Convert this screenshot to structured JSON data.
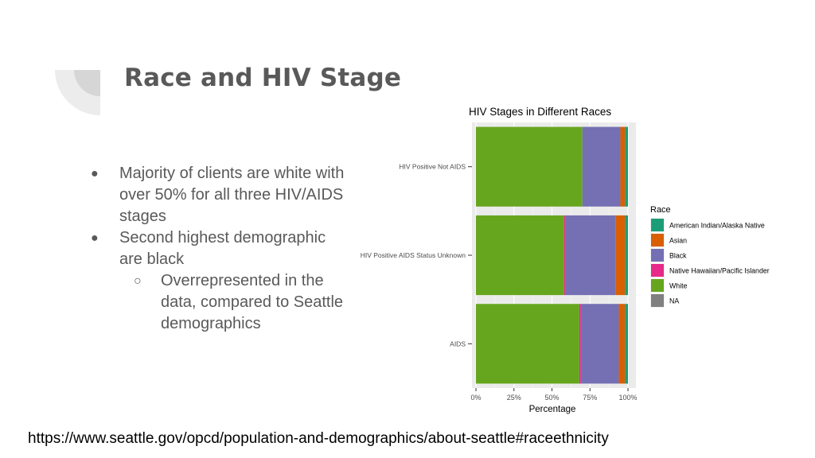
{
  "slide": {
    "title": "Race and HIV Stage",
    "bullets": [
      {
        "text": "Majority of clients are white with over 50% for all three HIV/AIDS stages",
        "level": 1
      },
      {
        "text": "Second highest demographic are black",
        "level": 1
      },
      {
        "text": "Overrepresented in the data, compared to Seattle demographics",
        "level": 2
      }
    ],
    "url": "https://www.seattle.gov/opcd/population-and-demographics/about-seattle#raceethnicity"
  },
  "chart_data": {
    "type": "bar",
    "orientation": "horizontal",
    "stacked": true,
    "title": "HIV Stages in Different Races",
    "xlabel": "Percentage",
    "ylabel": "",
    "xlim": [
      0,
      1
    ],
    "x_ticks": [
      "0%",
      "25%",
      "50%",
      "75%",
      "100%"
    ],
    "categories": [
      "HIV Positive Not AIDS",
      "HIV Positive AIDS Status Unknown",
      "AIDS"
    ],
    "legend_title": "Race",
    "legend_position": "right",
    "series": [
      {
        "name": "White",
        "color": "#66a61e",
        "values": [
          0.7,
          0.58,
          0.68
        ]
      },
      {
        "name": "Native Hawaiian/Pacific Islander",
        "color": "#e7298a",
        "values": [
          0.0,
          0.01,
          0.01
        ]
      },
      {
        "name": "Black",
        "color": "#7570b3",
        "values": [
          0.25,
          0.33,
          0.25
        ]
      },
      {
        "name": "Asian",
        "color": "#d95f02",
        "values": [
          0.03,
          0.06,
          0.04
        ]
      },
      {
        "name": "American Indian/Alaska Native",
        "color": "#1b9e77",
        "values": [
          0.02,
          0.02,
          0.02
        ]
      },
      {
        "name": "NA",
        "color": "#808080",
        "values": [
          0.0,
          0.0,
          0.0
        ]
      }
    ],
    "legend_order": [
      "American Indian/Alaska Native",
      "Asian",
      "Black",
      "Native Hawaiian/Pacific Islander",
      "White",
      "NA"
    ],
    "panel_background": "#ebebeb",
    "grid": true
  }
}
